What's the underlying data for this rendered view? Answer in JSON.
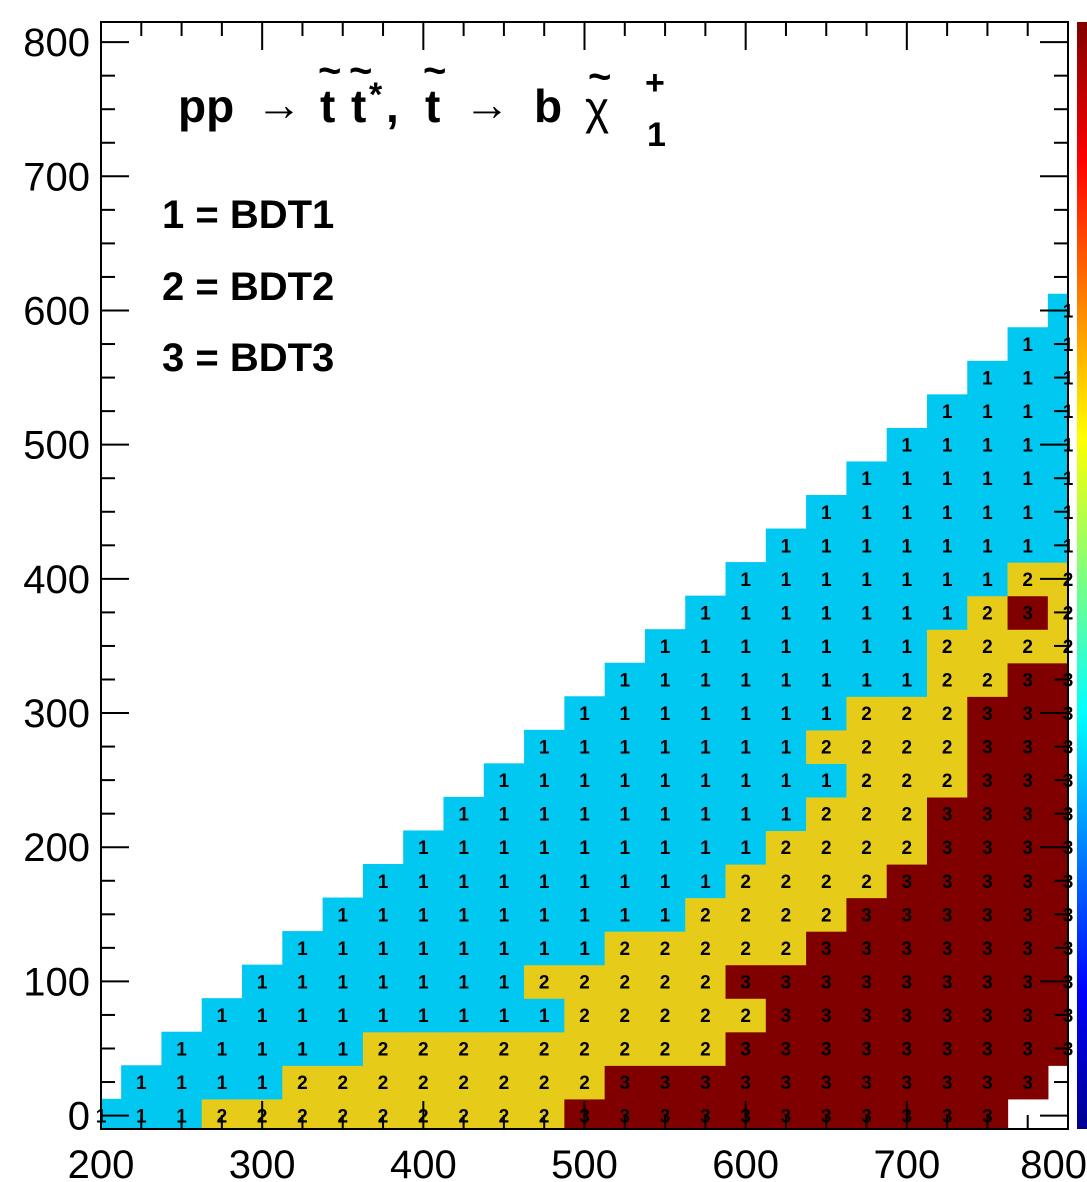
{
  "chart_data": {
    "type": "heatmap",
    "title": "pp → t̃ t̃*, t̃ → b χ̃⁺₁",
    "title_parts": {
      "pp": "pp",
      "arrow": "→",
      "t": "t",
      "tilde": "~",
      "tstar": "t",
      "star": "*",
      "comma": ",",
      "b": "b",
      "chi": "χ",
      "plus": "+",
      "one": "1"
    },
    "legend": [
      "1 = BDT1",
      "2 = BDT2",
      "3 = BDT3"
    ],
    "xlabel": "",
    "ylabel": "",
    "xlim": [
      200,
      800
    ],
    "ylim": [
      0,
      800
    ],
    "x_ticks": [
      "200",
      "300",
      "400",
      "500",
      "600",
      "700",
      "800"
    ],
    "y_ticks": [
      "0",
      "100",
      "200",
      "300",
      "400",
      "500",
      "600",
      "700",
      "800"
    ],
    "x_start": 200,
    "x_step": 25,
    "y_start": 0,
    "y_step": 25,
    "category_colors": {
      "1": "#00c8f0",
      "2": "#e6cc19",
      "3": "#800000"
    },
    "colorbar_colors": [
      "#00008f",
      "#0000ff",
      "#007fff",
      "#00ffff",
      "#7fff7f",
      "#ffff00",
      "#ff7f00",
      "#ff0000",
      "#800000"
    ],
    "rows": [
      "11122222222233333333333",
      "11112222222233333333333",
      "1111122222222233333333333",
      "1111111112222233333333333",
      "111111122222333333333333",
      "11111111222223333333333",
      "11111111122223333333333",
      "111111111222233333333333",
      "111111111222233333333333",
      "1111111112223333333333",
      "1111111112223333333333",
      "111111122223333333333",
      "1111111222333333333",
      "1111111122333333333",
      "111111122223333333",
      "11111112322333",
      "1111111222333",
      "111111111133",
      "111111111111",
      "1111111112",
      "11111111",
      "11111",
      "1111",
      "111",
      "11",
      "1"
    ],
    "row_start_x": [
      200,
      225,
      250,
      275,
      300,
      325,
      350,
      375,
      400,
      425,
      450,
      475,
      500,
      525,
      550,
      575,
      600,
      625,
      650,
      675,
      700,
      725,
      750,
      775,
      800,
      825
    ]
  }
}
